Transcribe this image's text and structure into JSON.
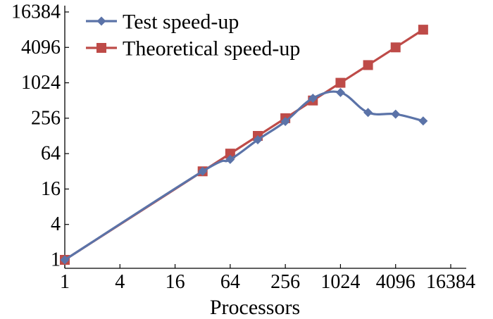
{
  "chart_data": {
    "type": "line",
    "title": "",
    "xlabel": "Processors",
    "ylabel": "",
    "xscale": "log2",
    "yscale": "log2",
    "xlim": [
      1,
      16384
    ],
    "ylim": [
      1,
      16384
    ],
    "xticks": [
      1,
      4,
      16,
      64,
      256,
      1024,
      4096,
      16384
    ],
    "yticks": [
      1,
      4,
      16,
      64,
      256,
      1024,
      4096,
      16384
    ],
    "xtick_labels": [
      "1",
      "4",
      "16",
      "64",
      "256",
      "1024",
      "4096",
      "16384"
    ],
    "ytick_labels": [
      "1",
      "4",
      "16",
      "64",
      "256",
      "1024",
      "4096",
      "16384"
    ],
    "grid": false,
    "legend_position": "top-left",
    "series": [
      {
        "name": "Test speed-up",
        "color": "#5b73a8",
        "marker": "diamond",
        "smooth": true,
        "x": [
          1,
          32,
          64,
          128,
          256,
          512,
          1024,
          2048,
          4096,
          8192
        ],
        "y": [
          1,
          32,
          51,
          110,
          225,
          560,
          700,
          320,
          300,
          230
        ]
      },
      {
        "name": "Theoretical speed-up",
        "color": "#be4b48",
        "marker": "square",
        "smooth": false,
        "x": [
          1,
          32,
          64,
          128,
          256,
          512,
          1024,
          2048,
          4096,
          8192
        ],
        "y": [
          1,
          32,
          64,
          128,
          256,
          512,
          1024,
          2048,
          4096,
          8192
        ]
      }
    ]
  }
}
